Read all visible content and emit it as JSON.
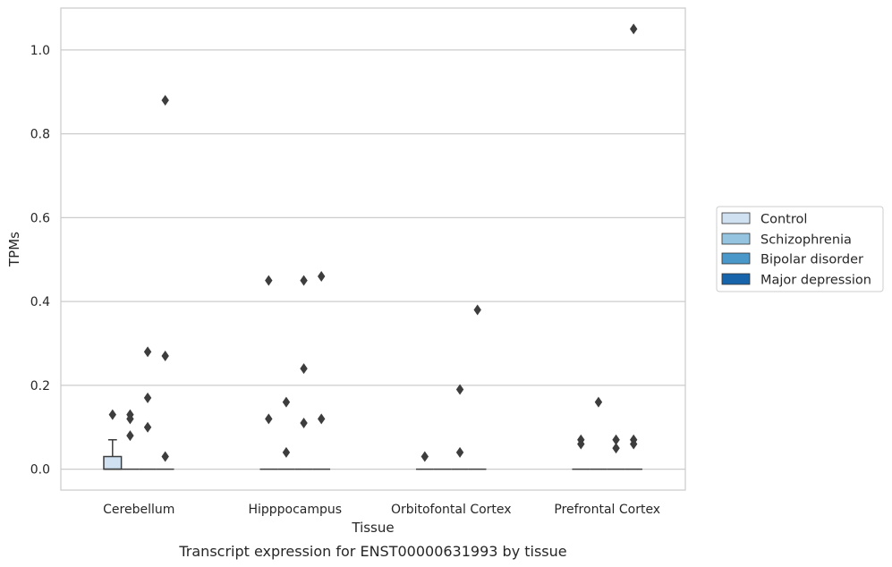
{
  "chart_data": {
    "type": "box",
    "title": "",
    "caption": "Transcript expression for ENST00000631993 by tissue",
    "xlabel": "Tissue",
    "ylabel": "TPMs",
    "ylim": [
      -0.05,
      1.1
    ],
    "yticks": [
      0.0,
      0.2,
      0.4,
      0.6,
      0.8,
      1.0
    ],
    "ytick_labels": [
      "0.0",
      "0.2",
      "0.4",
      "0.6",
      "0.8",
      "1.0"
    ],
    "grid": true,
    "legend_position": "right",
    "categories": [
      "Cerebellum",
      "Hipppocampus",
      "Orbitofontal Cortex",
      "Prefrontal Cortex"
    ],
    "series": [
      {
        "name": "Control",
        "color": "#d0e1f2"
      },
      {
        "name": "Schizophrenia",
        "color": "#94c4df"
      },
      {
        "name": "Bipolar disorder",
        "color": "#4a98c9"
      },
      {
        "name": "Major depression",
        "color": "#1764ab"
      }
    ],
    "boxes": [
      [
        {
          "q1": 0.0,
          "median": 0.0,
          "q3": 0.03,
          "whisker_low": 0.0,
          "whisker_high": 0.07,
          "outliers": [
            0.13
          ]
        },
        {
          "q1": 0.0,
          "median": 0.0,
          "q3": 0.0,
          "whisker_low": 0.0,
          "whisker_high": 0.0,
          "outliers": [
            0.13,
            0.12,
            0.08
          ]
        },
        {
          "q1": 0.0,
          "median": 0.0,
          "q3": 0.0,
          "whisker_low": 0.0,
          "whisker_high": 0.0,
          "outliers": [
            0.28,
            0.17,
            0.1
          ]
        },
        {
          "q1": 0.0,
          "median": 0.0,
          "q3": 0.0,
          "whisker_low": 0.0,
          "whisker_high": 0.0,
          "outliers": [
            0.88,
            0.27,
            0.03
          ]
        }
      ],
      [
        {
          "q1": 0.0,
          "median": 0.0,
          "q3": 0.0,
          "whisker_low": 0.0,
          "whisker_high": 0.0,
          "outliers": [
            0.45,
            0.12
          ]
        },
        {
          "q1": 0.0,
          "median": 0.0,
          "q3": 0.0,
          "whisker_low": 0.0,
          "whisker_high": 0.0,
          "outliers": [
            0.16,
            0.04
          ]
        },
        {
          "q1": 0.0,
          "median": 0.0,
          "q3": 0.0,
          "whisker_low": 0.0,
          "whisker_high": 0.0,
          "outliers": [
            0.45,
            0.24,
            0.11
          ]
        },
        {
          "q1": 0.0,
          "median": 0.0,
          "q3": 0.0,
          "whisker_low": 0.0,
          "whisker_high": 0.0,
          "outliers": [
            0.46,
            0.12
          ]
        }
      ],
      [
        {
          "q1": 0.0,
          "median": 0.0,
          "q3": 0.0,
          "whisker_low": 0.0,
          "whisker_high": 0.0,
          "outliers": [
            0.03
          ]
        },
        {
          "q1": 0.0,
          "median": 0.0,
          "q3": 0.0,
          "whisker_low": 0.0,
          "whisker_high": 0.0,
          "outliers": []
        },
        {
          "q1": 0.0,
          "median": 0.0,
          "q3": 0.0,
          "whisker_low": 0.0,
          "whisker_high": 0.0,
          "outliers": [
            0.19,
            0.04
          ]
        },
        {
          "q1": 0.0,
          "median": 0.0,
          "q3": 0.0,
          "whisker_low": 0.0,
          "whisker_high": 0.0,
          "outliers": [
            0.38
          ]
        }
      ],
      [
        {
          "q1": 0.0,
          "median": 0.0,
          "q3": 0.0,
          "whisker_low": 0.0,
          "whisker_high": 0.0,
          "outliers": [
            0.07,
            0.06
          ]
        },
        {
          "q1": 0.0,
          "median": 0.0,
          "q3": 0.0,
          "whisker_low": 0.0,
          "whisker_high": 0.0,
          "outliers": [
            0.16
          ]
        },
        {
          "q1": 0.0,
          "median": 0.0,
          "q3": 0.0,
          "whisker_low": 0.0,
          "whisker_high": 0.0,
          "outliers": [
            0.07,
            0.05
          ]
        },
        {
          "q1": 0.0,
          "median": 0.0,
          "q3": 0.0,
          "whisker_low": 0.0,
          "whisker_high": 0.0,
          "outliers": [
            1.05,
            0.07,
            0.06
          ]
        }
      ]
    ]
  }
}
